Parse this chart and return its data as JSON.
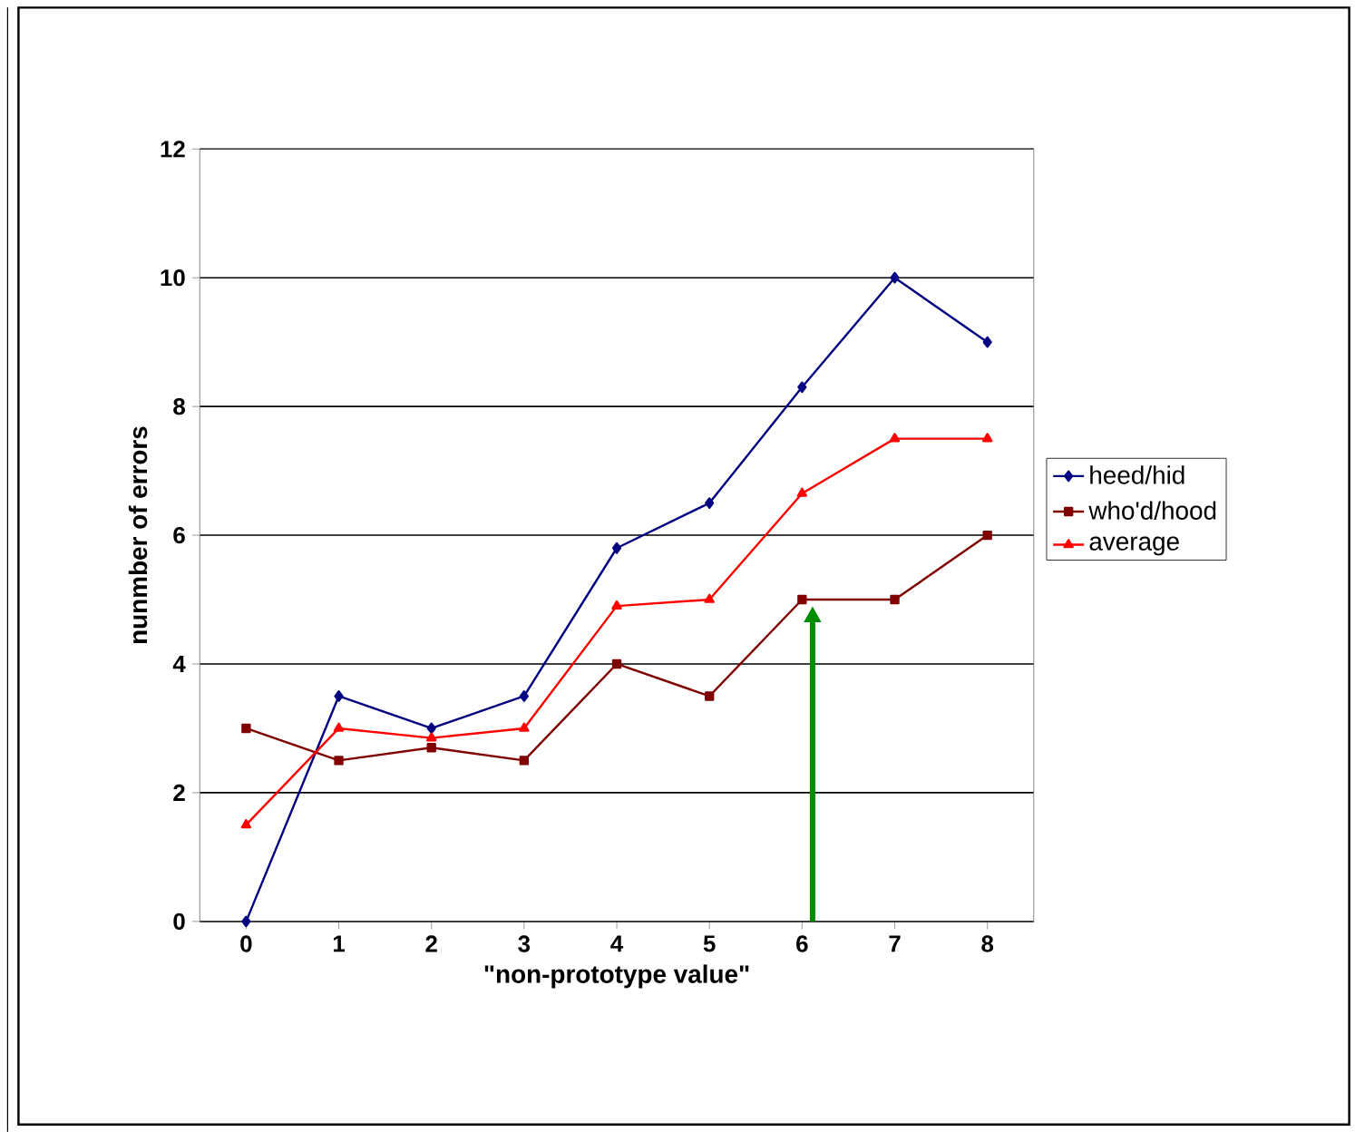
{
  "chart_data": {
    "type": "line",
    "xlabel": "\"non-prototype value\"",
    "ylabel": "nunmber of errors",
    "categories": [
      "0",
      "1",
      "2",
      "3",
      "4",
      "5",
      "6",
      "7",
      "8"
    ],
    "series": [
      {
        "name": "heed/hid",
        "color": "#000080",
        "marker": "diamond",
        "values": [
          0,
          3.5,
          3.0,
          3.5,
          5.8,
          6.5,
          8.3,
          10,
          9
        ]
      },
      {
        "name": "who'd/hood",
        "color": "#800000",
        "marker": "square",
        "values": [
          3,
          2.5,
          2.7,
          2.5,
          4,
          3.5,
          5,
          5,
          6
        ]
      },
      {
        "name": "average",
        "color": "#ff0000",
        "marker": "triangle",
        "values": [
          1.5,
          3.0,
          2.85,
          3.0,
          4.9,
          5.0,
          6.65,
          7.5,
          7.5
        ]
      }
    ],
    "ylim": [
      0,
      12
    ],
    "yticks": [
      0,
      2,
      4,
      6,
      8,
      10,
      12
    ],
    "grid": "y",
    "legend": "right"
  }
}
